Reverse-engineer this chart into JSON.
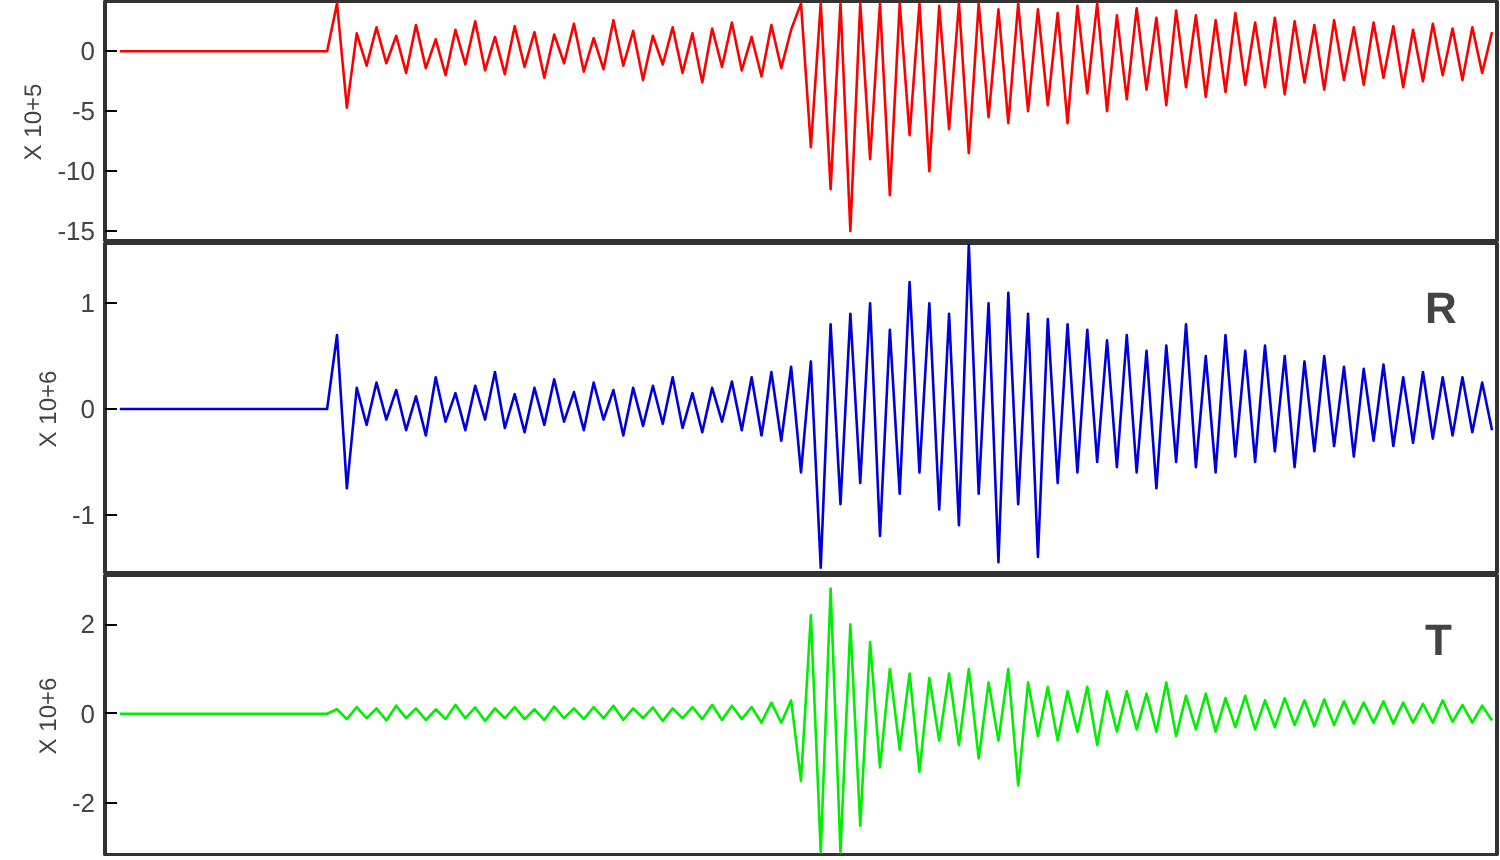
{
  "chart_data": [
    {
      "type": "line",
      "ylabel": "X 10+5",
      "ylim": [
        -16,
        4.2
      ],
      "yticks": [
        -15,
        -10,
        -5,
        0
      ],
      "tick_labels": "y",
      "grid": false,
      "categories": [
        null,
        null,
        null,
        null,
        null,
        null,
        null,
        null,
        null,
        null,
        null,
        null,
        null,
        null,
        null,
        null,
        null,
        null,
        null,
        null,
        null,
        null,
        null,
        null,
        null,
        null,
        null,
        null,
        null,
        null,
        null,
        null,
        null,
        null,
        null,
        null,
        null,
        null,
        null,
        null,
        null,
        null,
        null,
        null,
        null,
        null,
        null,
        null,
        null,
        null,
        null,
        null,
        null,
        null,
        null,
        null,
        null,
        null,
        null,
        null,
        null,
        null,
        null,
        null,
        null,
        null,
        null,
        null,
        null,
        null,
        null,
        null,
        null,
        null,
        null,
        null,
        null,
        null,
        null,
        null,
        null,
        null,
        null,
        null,
        null,
        null,
        null,
        null,
        null,
        null,
        null,
        null,
        null,
        null,
        null,
        null,
        null,
        null,
        null,
        null,
        null,
        null,
        null,
        null,
        null,
        null,
        null,
        null,
        null,
        null,
        null,
        null,
        null,
        null,
        null,
        null,
        null,
        null,
        null,
        null,
        null,
        null,
        null,
        null,
        null,
        null,
        null,
        null,
        null,
        null,
        null,
        null,
        null,
        null,
        null,
        null,
        null,
        null,
        null,
        null
      ],
      "series": [
        {
          "color": "#ff0000",
          "values": [
            0,
            0,
            0,
            0,
            0,
            0,
            0,
            0,
            0,
            0,
            0,
            0,
            0,
            0,
            0,
            0,
            0,
            0,
            0,
            0,
            0,
            0,
            4.0,
            -4.7,
            1.5,
            -1.2,
            2.0,
            -1.0,
            1.3,
            -1.8,
            2.2,
            -1.4,
            1.0,
            -2.0,
            1.8,
            -1.1,
            2.5,
            -1.6,
            1.2,
            -1.9,
            2.1,
            -1.3,
            1.6,
            -2.2,
            1.4,
            -1.0,
            2.3,
            -1.7,
            1.1,
            -1.5,
            2.6,
            -1.2,
            1.7,
            -2.4,
            1.3,
            -1.1,
            2.0,
            -1.8,
            1.5,
            -2.6,
            1.9,
            -1.3,
            2.4,
            -1.6,
            1.2,
            -2.1,
            2.2,
            -1.4,
            1.8,
            4.0,
            -8.0,
            4.0,
            -11.5,
            4.0,
            -15.0,
            4.0,
            -9.0,
            4.0,
            -12.0,
            4.0,
            -7.0,
            4.0,
            -10.0,
            3.8,
            -6.5,
            4.0,
            -8.5,
            4.0,
            -5.5,
            3.5,
            -6.0,
            4.0,
            -5.0,
            3.5,
            -4.5,
            3.2,
            -6.0,
            3.8,
            -3.5,
            4.0,
            -5.0,
            3.0,
            -4.0,
            3.6,
            -3.2,
            2.8,
            -4.5,
            3.4,
            -3.0,
            3.0,
            -3.8,
            2.6,
            -3.4,
            3.2,
            -2.8,
            2.4,
            -3.0,
            2.8,
            -3.6,
            2.5,
            -2.6,
            2.2,
            -3.2,
            2.6,
            -2.4,
            2.0,
            -2.8,
            2.4,
            -2.2,
            2.1,
            -3.0,
            1.8,
            -2.5,
            2.3,
            -2.0,
            1.9,
            -2.4,
            2.0,
            -1.8,
            1.6
          ]
        }
      ]
    },
    {
      "type": "line",
      "ylabel": "X 10+6",
      "ylim": [
        -1.57,
        1.57
      ],
      "yticks": [
        -1,
        0,
        1
      ],
      "tick_labels": "y",
      "grid": false,
      "annotations": [
        "R"
      ],
      "categories": [
        null,
        null,
        null,
        null,
        null,
        null,
        null,
        null,
        null,
        null,
        null,
        null,
        null,
        null,
        null,
        null,
        null,
        null,
        null,
        null,
        null,
        null,
        null,
        null,
        null,
        null,
        null,
        null,
        null,
        null,
        null,
        null,
        null,
        null,
        null,
        null,
        null,
        null,
        null,
        null,
        null,
        null,
        null,
        null,
        null,
        null,
        null,
        null,
        null,
        null,
        null,
        null,
        null,
        null,
        null,
        null,
        null,
        null,
        null,
        null,
        null,
        null,
        null,
        null,
        null,
        null,
        null,
        null,
        null,
        null,
        null,
        null,
        null,
        null,
        null,
        null,
        null,
        null,
        null,
        null,
        null,
        null,
        null,
        null,
        null,
        null,
        null,
        null,
        null,
        null,
        null,
        null,
        null,
        null,
        null,
        null,
        null,
        null,
        null,
        null,
        null,
        null,
        null,
        null,
        null,
        null,
        null,
        null,
        null,
        null,
        null,
        null,
        null,
        null,
        null,
        null,
        null,
        null,
        null,
        null,
        null,
        null,
        null,
        null,
        null,
        null,
        null,
        null,
        null,
        null,
        null,
        null,
        null,
        null,
        null,
        null,
        null,
        null,
        null,
        null
      ],
      "series": [
        {
          "color": "#0000dd",
          "values": [
            0,
            0,
            0,
            0,
            0,
            0,
            0,
            0,
            0,
            0,
            0,
            0,
            0,
            0,
            0,
            0,
            0,
            0,
            0,
            0,
            0,
            0,
            0.7,
            -0.75,
            0.2,
            -0.15,
            0.25,
            -0.1,
            0.18,
            -0.2,
            0.12,
            -0.25,
            0.3,
            -0.12,
            0.15,
            -0.2,
            0.22,
            -0.1,
            0.35,
            -0.18,
            0.14,
            -0.22,
            0.2,
            -0.15,
            0.28,
            -0.12,
            0.16,
            -0.2,
            0.25,
            -0.1,
            0.18,
            -0.25,
            0.2,
            -0.16,
            0.22,
            -0.14,
            0.3,
            -0.18,
            0.15,
            -0.22,
            0.2,
            -0.12,
            0.26,
            -0.2,
            0.3,
            -0.25,
            0.35,
            -0.3,
            0.4,
            -0.6,
            0.45,
            -1.5,
            0.8,
            -0.9,
            0.9,
            -0.7,
            1.0,
            -1.2,
            0.75,
            -0.8,
            1.2,
            -0.6,
            1.0,
            -0.95,
            0.9,
            -1.1,
            1.55,
            -0.8,
            1.0,
            -1.45,
            1.1,
            -0.9,
            0.9,
            -1.4,
            0.85,
            -0.7,
            0.8,
            -0.6,
            0.75,
            -0.5,
            0.65,
            -0.55,
            0.7,
            -0.6,
            0.55,
            -0.75,
            0.6,
            -0.5,
            0.8,
            -0.55,
            0.5,
            -0.6,
            0.7,
            -0.45,
            0.55,
            -0.5,
            0.6,
            -0.4,
            0.5,
            -0.55,
            0.45,
            -0.4,
            0.5,
            -0.35,
            0.4,
            -0.45,
            0.38,
            -0.3,
            0.42,
            -0.35,
            0.3,
            -0.32,
            0.35,
            -0.28,
            0.3,
            -0.25,
            0.3,
            -0.22,
            0.25,
            -0.2
          ]
        }
      ]
    },
    {
      "type": "line",
      "ylabel": "X 10+6",
      "ylim": [
        -3.2,
        3.1
      ],
      "yticks": [
        -2,
        0,
        2
      ],
      "tick_labels": "y",
      "grid": false,
      "annotations": [
        "T"
      ],
      "categories": [
        null,
        null,
        null,
        null,
        null,
        null,
        null,
        null,
        null,
        null,
        null,
        null,
        null,
        null,
        null,
        null,
        null,
        null,
        null,
        null,
        null,
        null,
        null,
        null,
        null,
        null,
        null,
        null,
        null,
        null,
        null,
        null,
        null,
        null,
        null,
        null,
        null,
        null,
        null,
        null,
        null,
        null,
        null,
        null,
        null,
        null,
        null,
        null,
        null,
        null,
        null,
        null,
        null,
        null,
        null,
        null,
        null,
        null,
        null,
        null,
        null,
        null,
        null,
        null,
        null,
        null,
        null,
        null,
        null,
        null,
        null,
        null,
        null,
        null,
        null,
        null,
        null,
        null,
        null,
        null,
        null,
        null,
        null,
        null,
        null,
        null,
        null,
        null,
        null,
        null,
        null,
        null,
        null,
        null,
        null,
        null,
        null,
        null,
        null,
        null,
        null,
        null,
        null,
        null,
        null,
        null,
        null,
        null,
        null,
        null,
        null,
        null,
        null,
        null,
        null,
        null,
        null,
        null,
        null,
        null,
        null,
        null,
        null,
        null,
        null,
        null,
        null,
        null,
        null,
        null,
        null,
        null,
        null,
        null,
        null,
        null,
        null,
        null,
        null,
        null
      ],
      "series": [
        {
          "color": "#00ee00",
          "values": [
            0,
            0,
            0,
            0,
            0,
            0,
            0,
            0,
            0,
            0,
            0,
            0,
            0,
            0,
            0,
            0,
            0,
            0,
            0,
            0,
            0,
            0,
            0.1,
            -0.12,
            0.15,
            -0.1,
            0.12,
            -0.15,
            0.18,
            -0.1,
            0.12,
            -0.14,
            0.1,
            -0.12,
            0.2,
            -0.1,
            0.14,
            -0.16,
            0.12,
            -0.1,
            0.15,
            -0.12,
            0.1,
            -0.14,
            0.16,
            -0.1,
            0.12,
            -0.12,
            0.15,
            -0.1,
            0.18,
            -0.14,
            0.12,
            -0.1,
            0.14,
            -0.16,
            0.12,
            -0.1,
            0.15,
            -0.12,
            0.2,
            -0.14,
            0.18,
            -0.12,
            0.15,
            -0.2,
            0.25,
            -0.2,
            0.3,
            -1.5,
            2.2,
            -3.1,
            2.8,
            -3.1,
            2.0,
            -2.5,
            1.6,
            -1.2,
            1.0,
            -0.8,
            0.9,
            -1.3,
            0.8,
            -0.6,
            0.9,
            -0.7,
            1.0,
            -1.0,
            0.7,
            -0.6,
            1.0,
            -1.6,
            0.7,
            -0.5,
            0.6,
            -0.6,
            0.5,
            -0.4,
            0.6,
            -0.7,
            0.5,
            -0.4,
            0.5,
            -0.35,
            0.45,
            -0.4,
            0.7,
            -0.5,
            0.4,
            -0.35,
            0.45,
            -0.4,
            0.35,
            -0.3,
            0.4,
            -0.35,
            0.3,
            -0.3,
            0.35,
            -0.25,
            0.3,
            -0.28,
            0.32,
            -0.25,
            0.28,
            -0.22,
            0.25,
            -0.2,
            0.28,
            -0.22,
            0.25,
            -0.2,
            0.22,
            -0.2,
            0.3,
            -0.18,
            0.2,
            -0.2,
            0.18,
            -0.15
          ]
        }
      ]
    }
  ]
}
